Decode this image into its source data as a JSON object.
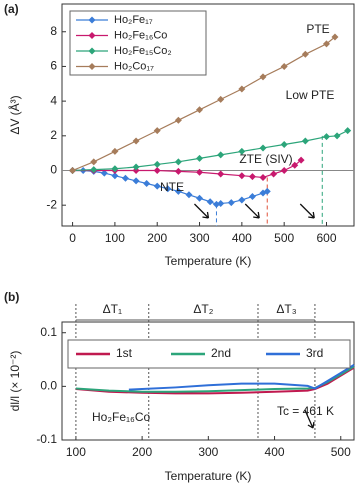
{
  "chart_data": [
    {
      "type": "line",
      "panel_label": "(a)",
      "x_label": "Temperature (K)",
      "y_label": "ΔV (Å³)",
      "xlim": [
        -25,
        665
      ],
      "ylim": [
        -3.2,
        9.6
      ],
      "xticks": [
        0,
        100,
        200,
        300,
        400,
        500,
        600
      ],
      "yticks": [
        -2,
        0,
        2,
        4,
        6,
        8
      ],
      "zero_line": true,
      "series": [
        {
          "name": "Ho₂Fe₁₇",
          "color": "#3b7dd8",
          "x": [
            0,
            25,
            50,
            75,
            100,
            125,
            150,
            175,
            200,
            225,
            250,
            275,
            300,
            325,
            340,
            350,
            375,
            400,
            425,
            450,
            460
          ],
          "values": [
            0,
            0,
            -0.05,
            -0.15,
            -0.3,
            -0.45,
            -0.6,
            -0.75,
            -0.9,
            -1.05,
            -1.2,
            -1.4,
            -1.6,
            -1.8,
            -1.95,
            -1.9,
            -1.85,
            -1.7,
            -1.5,
            -1.3,
            -1.2
          ]
        },
        {
          "name": "Ho₂Fe₁₆Co",
          "color": "#c8196e",
          "x": [
            0,
            50,
            100,
            150,
            200,
            250,
            300,
            350,
            400,
            425,
            450,
            475,
            500,
            525,
            540
          ],
          "values": [
            0,
            0,
            0,
            0,
            0,
            -0.05,
            -0.1,
            -0.2,
            -0.3,
            -0.35,
            -0.4,
            -0.2,
            0,
            0.3,
            0.6
          ]
        },
        {
          "name": "Ho₂Fe₁₅Co₂",
          "color": "#2ca57a",
          "x": [
            0,
            50,
            100,
            150,
            200,
            250,
            300,
            350,
            400,
            450,
            500,
            550,
            600,
            625,
            650
          ],
          "values": [
            0,
            0.05,
            0.1,
            0.2,
            0.35,
            0.5,
            0.7,
            0.9,
            1.1,
            1.3,
            1.5,
            1.7,
            1.95,
            2.0,
            2.3
          ]
        },
        {
          "name": "Ho₂Co₁₇",
          "color": "#a67c5b",
          "x": [
            0,
            50,
            100,
            150,
            200,
            250,
            300,
            350,
            400,
            450,
            500,
            550,
            600,
            620
          ],
          "values": [
            0,
            0.5,
            1.1,
            1.7,
            2.3,
            2.9,
            3.5,
            4.1,
            4.7,
            5.4,
            6.0,
            6.7,
            7.3,
            7.7
          ]
        }
      ],
      "vlines": [
        {
          "x": 340,
          "y": -1.95,
          "color": "#3b7dd8"
        },
        {
          "x": 460,
          "y": -0.4,
          "color": "#e0523a"
        },
        {
          "x": 590,
          "y": 2.0,
          "color": "#2ca57a"
        }
      ],
      "annotations": [
        "PTE",
        "Low PTE",
        "ZTE (SIV)",
        "NTE"
      ]
    },
    {
      "type": "line",
      "panel_label": "(b)",
      "x_label": "Temperature (K)",
      "y_label": "dl/l (× 10⁻²)",
      "xlim": [
        79,
        520
      ],
      "ylim": [
        -0.1,
        0.12
      ],
      "xticks": [
        100,
        200,
        300,
        400,
        500
      ],
      "yticks": [
        -0.1,
        {
          "value": 0,
          "label": "0.0"
        },
        0.1
      ],
      "series": [
        {
          "name": "1st",
          "color": "#c0194f",
          "x": [
            100,
            150,
            200,
            250,
            300,
            350,
            400,
            450,
            461,
            480,
            500,
            520
          ],
          "values": [
            -0.005,
            -0.01,
            -0.012,
            -0.013,
            -0.013,
            -0.012,
            -0.01,
            -0.008,
            -0.005,
            0.005,
            0.02,
            0.035
          ]
        },
        {
          "name": "2nd",
          "color": "#2ca57a",
          "x": [
            100,
            150,
            200,
            250,
            300,
            350,
            400,
            450,
            461,
            480,
            500,
            520
          ],
          "values": [
            -0.004,
            -0.008,
            -0.01,
            -0.01,
            -0.009,
            -0.007,
            -0.005,
            -0.004,
            -0.003,
            0.008,
            0.022,
            0.037
          ]
        },
        {
          "name": "3rd",
          "color": "#2f6fd8",
          "x": [
            180,
            200,
            250,
            300,
            350,
            400,
            450,
            461,
            480,
            500,
            520
          ],
          "values": [
            -0.006,
            -0.005,
            -0.002,
            0.002,
            0.005,
            0.005,
            0.001,
            -0.004,
            0.01,
            0.025,
            0.04
          ]
        }
      ],
      "vlines": [
        100,
        210,
        375,
        461
      ],
      "range_labels": [
        "ΔT₁",
        "ΔT₂",
        "ΔT₃"
      ],
      "annotations": [
        "Ho₂Fe₁₆Co",
        "Tc = 461 K"
      ]
    }
  ]
}
